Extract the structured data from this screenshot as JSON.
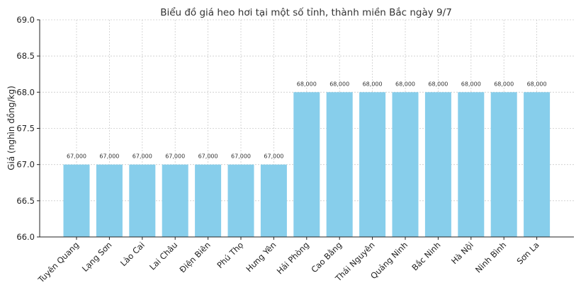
{
  "chart_data": {
    "type": "bar",
    "title": "Biểu đồ giá heo hơi tại một số tỉnh, thành miền Bắc ngày 9/7",
    "xlabel": "",
    "ylabel": "Giá (nghìn đồng/kg)",
    "ylim": [
      66.0,
      69.0
    ],
    "yticks": [
      "66.0",
      "66.5",
      "67.0",
      "67.5",
      "68.0",
      "68.5",
      "69.0"
    ],
    "grid": true,
    "bar_color": "#87ceeb",
    "categories": [
      "Tuyên Quang",
      "Lạng Sơn",
      "Lào Cai",
      "Lai Châu",
      "Điện Biên",
      "Phú Thọ",
      "Hưng Yên",
      "Hải Phòng",
      "Cao Bằng",
      "Thái Nguyên",
      "Quảng Ninh",
      "Bắc Ninh",
      "Hà Nội",
      "Ninh Bình",
      "Sơn La"
    ],
    "values": [
      67,
      67,
      67,
      67,
      67,
      67,
      67,
      68,
      68,
      68,
      68,
      68,
      68,
      68,
      68
    ],
    "data_labels": [
      "67,000",
      "67,000",
      "67,000",
      "67,000",
      "67,000",
      "67,000",
      "67,000",
      "68,000",
      "68,000",
      "68,000",
      "68,000",
      "68,000",
      "68,000",
      "68,000",
      "68,000"
    ]
  }
}
